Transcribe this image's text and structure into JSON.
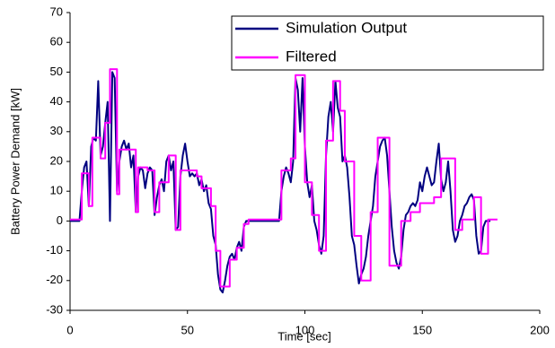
{
  "chart_data": {
    "type": "line",
    "xlabel": "Time [sec]",
    "ylabel": "Battery Power Demand [kW]",
    "xlim": [
      0,
      200
    ],
    "xticks": [
      0,
      50,
      100,
      150,
      200
    ],
    "ylim": [
      -30,
      70
    ],
    "yticks": [
      -30,
      -20,
      -10,
      0,
      10,
      20,
      30,
      40,
      50,
      60,
      70
    ],
    "legend": "upper right",
    "series": [
      {
        "name": "Simulation Output",
        "color": "#000080",
        "x": [
          0,
          1,
          2,
          3,
          4,
          5,
          6,
          7,
          8,
          9,
          10,
          11,
          12,
          13,
          14,
          15,
          16,
          17,
          18,
          19,
          20,
          21,
          22,
          23,
          24,
          25,
          26,
          27,
          28,
          29,
          30,
          31,
          32,
          33,
          34,
          35,
          36,
          37,
          38,
          39,
          40,
          41,
          42,
          43,
          44,
          45,
          46,
          47,
          48,
          49,
          50,
          51,
          52,
          53,
          54,
          55,
          56,
          57,
          58,
          59,
          60,
          61,
          62,
          63,
          64,
          65,
          66,
          67,
          68,
          69,
          70,
          71,
          72,
          73,
          74,
          75,
          76,
          77,
          78,
          79,
          80,
          81,
          82,
          83,
          84,
          85,
          86,
          87,
          88,
          89,
          90,
          91,
          92,
          93,
          94,
          95,
          96,
          97,
          98,
          99,
          100,
          101,
          102,
          103,
          104,
          105,
          106,
          107,
          108,
          109,
          110,
          111,
          112,
          113,
          114,
          115,
          116,
          117,
          118,
          119,
          120,
          121,
          122,
          123,
          124,
          125,
          126,
          127,
          128,
          129,
          130,
          131,
          132,
          133,
          134,
          135,
          136,
          137,
          138,
          139,
          140,
          141,
          142,
          143,
          144,
          145,
          146,
          147,
          148,
          149,
          150,
          151,
          152,
          153,
          154,
          155,
          156,
          157,
          158,
          159,
          160,
          161,
          162,
          163,
          164,
          165,
          166,
          167,
          168,
          169,
          170,
          171,
          172,
          173,
          174,
          175,
          176,
          177,
          178,
          179
        ],
        "values": [
          0,
          0,
          0,
          0,
          0,
          10,
          18,
          20,
          5,
          25,
          28,
          27,
          47,
          22,
          25,
          33,
          40,
          0,
          50,
          48,
          10,
          20,
          25,
          27,
          24,
          26,
          18,
          22,
          3,
          15,
          18,
          17,
          11,
          16,
          18,
          17,
          2,
          8,
          12,
          14,
          10,
          20,
          22,
          17,
          20,
          -3,
          -2,
          15,
          22,
          26,
          20,
          15,
          16,
          15,
          16,
          12,
          14,
          10,
          12,
          6,
          4,
          -5,
          -8,
          -18,
          -23,
          -24,
          -20,
          -15,
          -12,
          -11,
          -13,
          -9,
          -7,
          -10,
          -2,
          0,
          0,
          0,
          0,
          0,
          0,
          0,
          0,
          0,
          0,
          0,
          0,
          0,
          0,
          0,
          10,
          15,
          18,
          16,
          13,
          20,
          48,
          44,
          30,
          48,
          25,
          13,
          8,
          12,
          0,
          -3,
          -8,
          -11,
          -5,
          22,
          35,
          40,
          30,
          47,
          38,
          35,
          20,
          22,
          18,
          8,
          -5,
          -8,
          -15,
          -21,
          -18,
          -16,
          -12,
          -5,
          0,
          5,
          15,
          20,
          25,
          27,
          28,
          22,
          10,
          -2,
          -10,
          -14,
          -16,
          -12,
          -3,
          2,
          3,
          5,
          6,
          5,
          7,
          13,
          10,
          15,
          18,
          15,
          12,
          13,
          20,
          26,
          14,
          10,
          13,
          20,
          10,
          -3,
          -7,
          -5,
          0,
          2,
          5,
          6,
          8,
          9,
          7,
          -5,
          -11,
          -10,
          -2,
          0,
          0,
          0
        ]
      },
      {
        "name": "Filtered",
        "color": "#ff00ff",
        "x": [
          0,
          5,
          5,
          8,
          8,
          9.5,
          9.5,
          13,
          13,
          15,
          15,
          17,
          17,
          20,
          20,
          21,
          21,
          28,
          28,
          29,
          29,
          33,
          33,
          36,
          36,
          38,
          38,
          42,
          42,
          45,
          45,
          47,
          47,
          54,
          54,
          56,
          56,
          60,
          60,
          62,
          62,
          64,
          64,
          68,
          68,
          71,
          71,
          74,
          74,
          76,
          76,
          90,
          90,
          94,
          94,
          96,
          96,
          100,
          100,
          103,
          103,
          106,
          106,
          109,
          109,
          112,
          112,
          115,
          115,
          117,
          117,
          121,
          121,
          124,
          124,
          128,
          128,
          131,
          131,
          136,
          136,
          141,
          141,
          145,
          145,
          149,
          149,
          155,
          155,
          158,
          158,
          164,
          164,
          167,
          167,
          172,
          172,
          175,
          175,
          178,
          178,
          182
        ],
        "values": [
          0.5,
          0.5,
          16,
          16,
          5,
          5,
          28,
          28,
          21,
          21,
          33,
          33,
          51,
          51,
          9,
          9,
          24,
          24,
          3,
          3,
          18,
          18,
          17,
          17,
          3,
          3,
          13,
          13,
          22,
          22,
          -3,
          -3,
          17,
          17,
          15,
          15,
          11,
          11,
          5,
          5,
          -10,
          -10,
          -22,
          -22,
          -13,
          -13,
          -9,
          -9,
          -1,
          -1,
          0.5,
          0.5,
          17,
          17,
          21,
          21,
          49,
          49,
          13,
          13,
          2,
          2,
          -10,
          -10,
          27,
          27,
          47,
          47,
          37,
          37,
          20,
          20,
          -5,
          -5,
          -20,
          -20,
          3,
          3,
          28,
          28,
          -15,
          -15,
          0,
          0,
          3,
          3,
          6,
          6,
          8,
          8,
          21,
          21,
          -3,
          -3,
          0.5,
          0.5,
          8,
          8,
          -11,
          -11,
          0.5,
          0.5
        ]
      }
    ]
  }
}
